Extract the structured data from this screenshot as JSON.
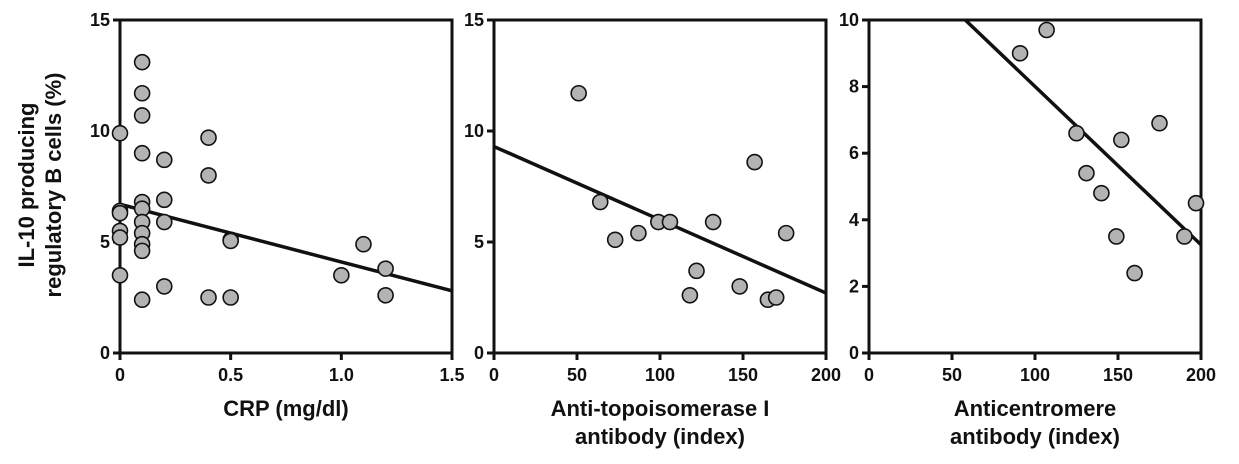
{
  "figure": {
    "ylabel_lines": [
      "IL-10 producing",
      "regulatory B cells (%)"
    ]
  },
  "chart_data": [
    {
      "type": "scatter",
      "title": "",
      "xlabel_lines": [
        "CRP (mg/dl)"
      ],
      "ylabel": "IL-10 producing regulatory B cells (%)",
      "xlim": [
        0,
        1.5
      ],
      "ylim": [
        0,
        15
      ],
      "xticks": [
        0,
        0.5,
        1.0,
        1.5
      ],
      "xtick_labels": [
        "0",
        "0.5",
        "1.0",
        "1.5"
      ],
      "yticks": [
        0,
        5,
        10,
        15
      ],
      "ytick_labels": [
        "0",
        "5",
        "10",
        "15"
      ],
      "grid": false,
      "legend": "none",
      "colors": {
        "marker_fill": "#b3b3b3",
        "marker_edge": "#111111",
        "line": "#111111"
      },
      "points": [
        {
          "x": 0.0,
          "y": 9.9
        },
        {
          "x": 0.0,
          "y": 6.4
        },
        {
          "x": 0.0,
          "y": 6.3
        },
        {
          "x": 0.0,
          "y": 5.5
        },
        {
          "x": 0.0,
          "y": 5.2
        },
        {
          "x": 0.0,
          "y": 3.5
        },
        {
          "x": 0.1,
          "y": 13.1
        },
        {
          "x": 0.1,
          "y": 11.7
        },
        {
          "x": 0.1,
          "y": 10.7
        },
        {
          "x": 0.1,
          "y": 9.0
        },
        {
          "x": 0.1,
          "y": 6.8
        },
        {
          "x": 0.1,
          "y": 6.5
        },
        {
          "x": 0.1,
          "y": 5.9
        },
        {
          "x": 0.1,
          "y": 5.4
        },
        {
          "x": 0.1,
          "y": 4.9
        },
        {
          "x": 0.1,
          "y": 4.6
        },
        {
          "x": 0.1,
          "y": 2.4
        },
        {
          "x": 0.2,
          "y": 8.7
        },
        {
          "x": 0.2,
          "y": 6.9
        },
        {
          "x": 0.2,
          "y": 5.9
        },
        {
          "x": 0.2,
          "y": 3.0
        },
        {
          "x": 0.4,
          "y": 9.7
        },
        {
          "x": 0.4,
          "y": 8.0
        },
        {
          "x": 0.4,
          "y": 2.5
        },
        {
          "x": 0.5,
          "y": 5.1
        },
        {
          "x": 0.5,
          "y": 5.05
        },
        {
          "x": 0.5,
          "y": 2.5
        },
        {
          "x": 1.0,
          "y": 3.5
        },
        {
          "x": 1.1,
          "y": 4.9
        },
        {
          "x": 1.2,
          "y": 3.8
        },
        {
          "x": 1.2,
          "y": 2.6
        }
      ],
      "regression": {
        "x": [
          0,
          1.5
        ],
        "y": [
          6.7,
          2.8
        ]
      }
    },
    {
      "type": "scatter",
      "title": "",
      "xlabel_lines": [
        "Anti-topoisomerase I",
        "antibody (index)"
      ],
      "ylabel": "",
      "xlim": [
        0,
        200
      ],
      "ylim": [
        0,
        15
      ],
      "xticks": [
        0,
        50,
        100,
        150,
        200
      ],
      "xtick_labels": [
        "0",
        "50",
        "100",
        "150",
        "200"
      ],
      "yticks": [
        0,
        5,
        10,
        15
      ],
      "ytick_labels": [
        "0",
        "5",
        "10",
        "15"
      ],
      "grid": false,
      "legend": "none",
      "colors": {
        "marker_fill": "#b3b3b3",
        "marker_edge": "#111111",
        "line": "#111111"
      },
      "points": [
        {
          "x": 51,
          "y": 11.7
        },
        {
          "x": 64,
          "y": 6.8
        },
        {
          "x": 73,
          "y": 5.1
        },
        {
          "x": 87,
          "y": 5.4
        },
        {
          "x": 99,
          "y": 5.9
        },
        {
          "x": 106,
          "y": 5.9
        },
        {
          "x": 118,
          "y": 2.6
        },
        {
          "x": 122,
          "y": 3.7
        },
        {
          "x": 132,
          "y": 5.9
        },
        {
          "x": 148,
          "y": 3.0
        },
        {
          "x": 157,
          "y": 8.6
        },
        {
          "x": 165,
          "y": 2.4
        },
        {
          "x": 170,
          "y": 2.5
        },
        {
          "x": 176,
          "y": 5.4
        }
      ],
      "regression": {
        "x": [
          0,
          200
        ],
        "y": [
          9.3,
          2.7
        ]
      }
    },
    {
      "type": "scatter",
      "title": "",
      "xlabel_lines": [
        "Anticentromere",
        "antibody (index)"
      ],
      "ylabel": "",
      "xlim": [
        0,
        200
      ],
      "ylim": [
        0,
        10
      ],
      "xticks": [
        0,
        50,
        100,
        150,
        200
      ],
      "xtick_labels": [
        "0",
        "50",
        "100",
        "150",
        "200"
      ],
      "yticks": [
        0,
        2,
        4,
        6,
        8,
        10
      ],
      "ytick_labels": [
        "0",
        "2",
        "4",
        "6",
        "8",
        "10"
      ],
      "grid": false,
      "legend": "none",
      "colors": {
        "marker_fill": "#b3b3b3",
        "marker_edge": "#111111",
        "line": "#111111"
      },
      "points": [
        {
          "x": 91,
          "y": 9.0
        },
        {
          "x": 107,
          "y": 9.7
        },
        {
          "x": 125,
          "y": 6.6
        },
        {
          "x": 131,
          "y": 5.4
        },
        {
          "x": 140,
          "y": 4.8
        },
        {
          "x": 149,
          "y": 3.5
        },
        {
          "x": 152,
          "y": 6.4
        },
        {
          "x": 160,
          "y": 2.4
        },
        {
          "x": 175,
          "y": 6.9
        },
        {
          "x": 190,
          "y": 3.5
        },
        {
          "x": 197,
          "y": 4.5
        }
      ],
      "regression": {
        "x": [
          58,
          200
        ],
        "y": [
          10.0,
          3.25
        ]
      }
    }
  ]
}
